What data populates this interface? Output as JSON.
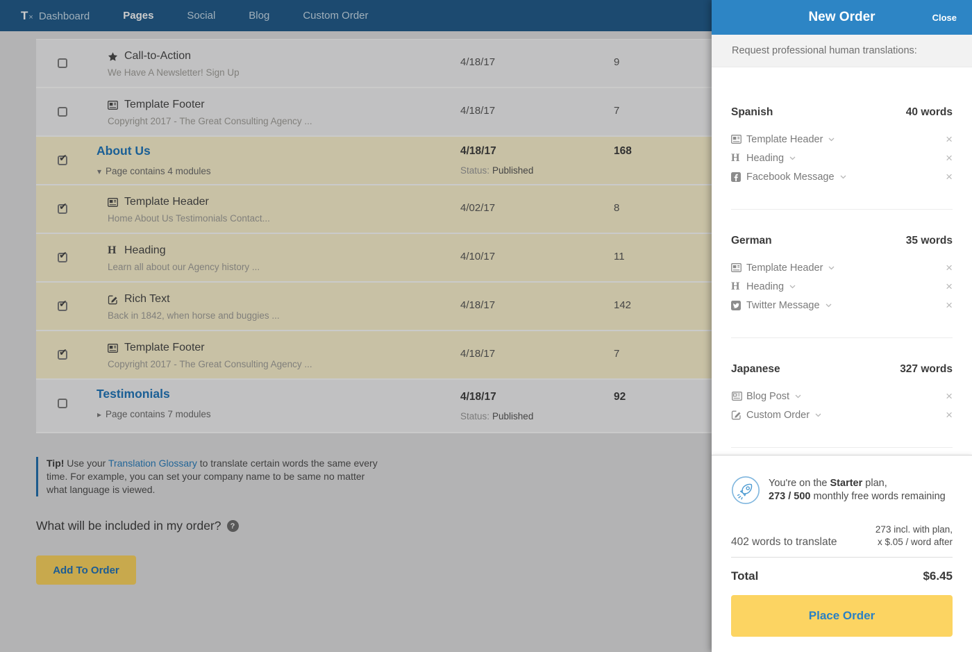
{
  "navbar": {
    "logo_main": "T",
    "logo_mark": "×",
    "items": [
      {
        "label": "Dashboard",
        "active": false,
        "brand": true
      },
      {
        "label": "Pages",
        "active": true
      },
      {
        "label": "Social",
        "active": false
      },
      {
        "label": "Blog",
        "active": false
      },
      {
        "label": "Custom Order",
        "active": false
      }
    ]
  },
  "table": {
    "rows": [
      {
        "type": "module",
        "icon": "star",
        "title": "Call-to-Action",
        "subtitle": "We Have A Newsletter! Sign Up",
        "date": "4/18/17",
        "words": "9",
        "checked": false,
        "selected": false
      },
      {
        "type": "module",
        "icon": "template",
        "title": "Template Footer",
        "subtitle": "Copyright 2017 - The Great Consulting Agency ...",
        "date": "4/18/17",
        "words": "7",
        "checked": false,
        "selected": false
      },
      {
        "type": "page",
        "title": "About Us",
        "meta": "Page contains 4 modules",
        "expand": "expanded",
        "date": "4/18/17",
        "status_label": "Status:",
        "status_value": "Published",
        "words": "168",
        "checked": true,
        "selected": true
      },
      {
        "type": "module",
        "icon": "template",
        "title": "Template Header",
        "subtitle": "Home About Us Testimonials Contact...",
        "date": "4/02/17",
        "words": "8",
        "checked": true,
        "selected": true
      },
      {
        "type": "module",
        "icon": "heading",
        "title": "Heading",
        "subtitle": "Learn all about our Agency history ...",
        "date": "4/10/17",
        "words": "11",
        "checked": true,
        "selected": true
      },
      {
        "type": "module",
        "icon": "richtext",
        "title": "Rich Text",
        "subtitle": "Back in 1842, when horse and buggies ...",
        "date": "4/18/17",
        "words": "142",
        "checked": true,
        "selected": true
      },
      {
        "type": "module",
        "icon": "template",
        "title": "Template Footer",
        "subtitle": "Copyright 2017 - The Great Consulting Agency ...",
        "date": "4/18/17",
        "words": "7",
        "checked": true,
        "selected": true
      },
      {
        "type": "page",
        "title": "Testimonials",
        "meta": "Page contains 7 modules",
        "expand": "collapsed",
        "date": "4/18/17",
        "status_label": "Status:",
        "status_value": "Published",
        "words": "92",
        "checked": false,
        "selected": false
      }
    ]
  },
  "tip": {
    "bold": "Tip!",
    "pre": " Use your ",
    "link": "Translation Glossary",
    "post": " to translate certain words the same every time. For example, you can set your company name to be same no matter what language is viewed."
  },
  "order_question": "What will be included in my order?",
  "question_glyph": "?",
  "add_to_order_label": "Add To Order",
  "panel": {
    "title": "New Order",
    "close_label": "Close",
    "subtitle": "Request professional human translations:",
    "languages": [
      {
        "name": "Spanish",
        "words": "40 words",
        "items": [
          {
            "icon": "template",
            "label": "Template Header"
          },
          {
            "icon": "heading",
            "label": "Heading"
          },
          {
            "icon": "facebook",
            "label": "Facebook Message"
          }
        ]
      },
      {
        "name": "German",
        "words": "35 words",
        "items": [
          {
            "icon": "template",
            "label": "Template Header"
          },
          {
            "icon": "heading",
            "label": "Heading"
          },
          {
            "icon": "twitter",
            "label": "Twitter Message"
          }
        ]
      },
      {
        "name": "Japanese",
        "words": "327 words",
        "items": [
          {
            "icon": "blog",
            "label": "Blog Post"
          },
          {
            "icon": "richtext",
            "label": "Custom Order"
          }
        ]
      }
    ],
    "plan": {
      "pre": "You're on the ",
      "name": "Starter",
      "post": " plan,",
      "bold2": "273 / 500",
      "rest2": " monthly free words remaining"
    },
    "words_row": {
      "left": "402 words to translate",
      "right_line1": "273 incl. with plan,",
      "right_line2": "x $.05 / word after"
    },
    "total_label": "Total",
    "total_value": "$6.45",
    "place_order_label": "Place Order"
  },
  "colors": {
    "navbar_blue": "#235d8c",
    "panel_header_blue": "#2d85c5",
    "selected_row_yellow": "#faf2cf",
    "button_yellow": "#fcd462",
    "button_text_blue": "#2a80c4",
    "link_blue": "#2b7fbd"
  }
}
